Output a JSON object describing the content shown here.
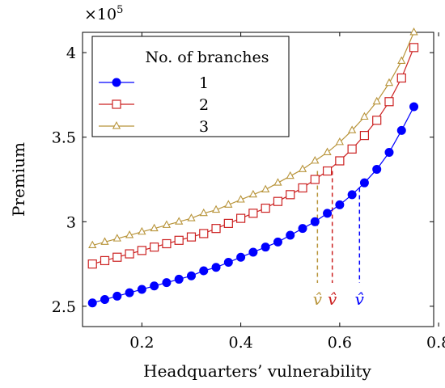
{
  "chart_data": {
    "type": "line",
    "title": "",
    "xlabel": "Headquarters’ vulnerability",
    "ylabel": "Premium",
    "y_multiplier": "×10",
    "y_multiplier_exp": "5",
    "xlim": [
      0.08,
      0.79
    ],
    "ylim": [
      2.38,
      4.12
    ],
    "x_ticks": [
      0.2,
      0.4,
      0.6,
      0.8
    ],
    "x_tick_labels": [
      "0.2",
      "0.4",
      "0.6",
      "0.8"
    ],
    "y_ticks": [
      2.5,
      3,
      3.5,
      4
    ],
    "y_tick_labels": [
      "2.5",
      "3",
      "3.5",
      "4"
    ],
    "grid": false,
    "legend": {
      "title": "No. of branches",
      "placement": "top-left"
    },
    "x": [
      0.1,
      0.125,
      0.15,
      0.175,
      0.2,
      0.225,
      0.25,
      0.275,
      0.3,
      0.325,
      0.35,
      0.375,
      0.4,
      0.425,
      0.45,
      0.475,
      0.5,
      0.525,
      0.55,
      0.575,
      0.6,
      0.625,
      0.65,
      0.675,
      0.7,
      0.725,
      0.75
    ],
    "series": [
      {
        "name": "1",
        "color": "#0000ff",
        "marker": "circle",
        "values": [
          2.52,
          2.54,
          2.56,
          2.58,
          2.6,
          2.62,
          2.64,
          2.66,
          2.68,
          2.71,
          2.73,
          2.76,
          2.79,
          2.82,
          2.85,
          2.88,
          2.92,
          2.96,
          3.0,
          3.05,
          3.1,
          3.16,
          3.23,
          3.31,
          3.41,
          3.54,
          3.68
        ]
      },
      {
        "name": "2",
        "color": "#cc2222",
        "marker": "square",
        "values": [
          2.75,
          2.77,
          2.79,
          2.81,
          2.83,
          2.85,
          2.87,
          2.89,
          2.91,
          2.93,
          2.96,
          2.99,
          3.02,
          3.05,
          3.08,
          3.12,
          3.16,
          3.2,
          3.25,
          3.3,
          3.36,
          3.43,
          3.51,
          3.6,
          3.71,
          3.85,
          4.03
        ]
      },
      {
        "name": "3",
        "color": "#b8943a",
        "marker": "triangle",
        "values": [
          2.86,
          2.88,
          2.9,
          2.92,
          2.94,
          2.96,
          2.98,
          3.0,
          3.02,
          3.05,
          3.07,
          3.1,
          3.13,
          3.16,
          3.19,
          3.23,
          3.27,
          3.31,
          3.36,
          3.41,
          3.47,
          3.54,
          3.62,
          3.71,
          3.82,
          3.95,
          4.12
        ]
      }
    ],
    "annotations": [
      {
        "label": "v̂",
        "x": 0.555,
        "y": 3.3,
        "color": "#b8943a"
      },
      {
        "label": "v̂",
        "x": 0.585,
        "y": 3.3,
        "color": "#cc2222"
      },
      {
        "label": "v̂",
        "x": 0.64,
        "y": 3.2,
        "color": "#0000ff"
      }
    ]
  }
}
